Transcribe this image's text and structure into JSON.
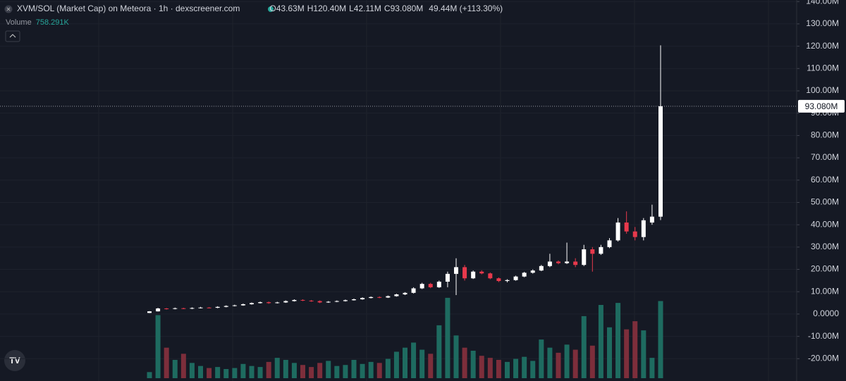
{
  "chart_data": {
    "type": "candlestick",
    "title": "XVM/SOL (Market Cap) on Meteora · 1h · dexscreener.com",
    "ohlc": [
      {
        "key": "O",
        "value": "43.63M"
      },
      {
        "key": "H",
        "value": "120.40M"
      },
      {
        "key": "L",
        "value": "42.11M"
      },
      {
        "key": "C",
        "value": "93.080M"
      }
    ],
    "change": "49.44M (+113.30%)",
    "volume_label": "Volume",
    "volume_value_label": "758.291K",
    "last_price": 93.08,
    "last_price_label": "93.080M",
    "open": [
      0.5,
      1.2,
      2.5,
      2.3,
      2.6,
      2.4,
      2.7,
      2.9,
      2.8,
      3.2,
      3.6,
      3.9,
      4.4,
      4.9,
      5.3,
      4.9,
      5.2,
      5.8,
      6.3,
      6.0,
      5.8,
      5.2,
      5.5,
      5.8,
      6.2,
      6.6,
      7.2,
      7.6,
      7.4,
      8.0,
      8.8,
      9.5,
      11.5,
      13.5,
      12.0,
      14.5,
      18.0,
      21.0,
      16.0,
      19.0,
      18.2,
      16.0,
      14.8,
      15.2,
      16.8,
      18.5,
      19.5,
      21.5,
      23.5,
      22.8,
      23.5,
      22.0,
      29.0,
      27.0,
      30.0,
      33.0,
      41.0,
      37.0,
      34.5,
      41.0,
      43.63
    ],
    "high": [
      1.3,
      2.8,
      2.7,
      2.9,
      2.8,
      3.0,
      3.2,
      3.1,
      3.5,
      3.9,
      4.2,
      4.7,
      5.2,
      5.6,
      5.6,
      5.5,
      6.1,
      6.6,
      6.6,
      6.3,
      6.1,
      5.8,
      6.1,
      6.5,
      6.9,
      7.5,
      7.9,
      7.9,
      8.3,
      9.1,
      9.8,
      12.0,
      14.0,
      14.0,
      15.0,
      19.0,
      25.0,
      22.0,
      19.5,
      19.6,
      18.6,
      16.4,
      15.6,
      17.2,
      18.9,
      20.0,
      22.0,
      27.0,
      24.0,
      32.0,
      25.0,
      31.0,
      30.0,
      31.0,
      34.0,
      43.0,
      46.0,
      39.0,
      43.0,
      49.0,
      120.4
    ],
    "low": [
      0.4,
      1.1,
      2.0,
      2.1,
      2.2,
      2.2,
      2.5,
      2.6,
      2.6,
      3.0,
      3.4,
      3.7,
      4.2,
      4.7,
      4.6,
      4.7,
      5.0,
      5.6,
      5.8,
      5.5,
      4.9,
      5.0,
      5.3,
      5.6,
      6.0,
      6.4,
      7.0,
      7.1,
      7.2,
      7.8,
      8.5,
      9.2,
      11.2,
      11.6,
      11.7,
      12.0,
      8.5,
      15.0,
      15.7,
      17.8,
      15.6,
      14.3,
      14.2,
      14.9,
      16.5,
      18.1,
      19.2,
      21.0,
      22.3,
      22.4,
      21.0,
      21.5,
      19.0,
      26.5,
      29.5,
      32.5,
      36.0,
      33.0,
      33.0,
      40.0,
      42.11
    ],
    "close": [
      1.2,
      2.5,
      2.3,
      2.6,
      2.4,
      2.7,
      2.9,
      2.8,
      3.2,
      3.6,
      3.9,
      4.4,
      4.9,
      5.3,
      4.9,
      5.2,
      5.8,
      6.3,
      6.0,
      5.8,
      5.2,
      5.5,
      5.8,
      6.2,
      6.6,
      7.2,
      7.6,
      7.4,
      8.0,
      8.8,
      9.5,
      11.5,
      13.5,
      12.0,
      14.5,
      18.0,
      21.0,
      16.0,
      19.0,
      18.2,
      16.0,
      14.8,
      15.2,
      16.8,
      18.5,
      19.5,
      21.5,
      23.5,
      22.8,
      23.5,
      22.0,
      29.0,
      27.0,
      30.0,
      33.0,
      41.0,
      37.0,
      34.5,
      42.0,
      43.63,
      93.08
    ],
    "volume": [
      60,
      620,
      300,
      180,
      240,
      150,
      120,
      100,
      110,
      90,
      100,
      140,
      120,
      110,
      160,
      200,
      180,
      150,
      130,
      110,
      150,
      170,
      120,
      130,
      180,
      140,
      160,
      150,
      190,
      260,
      300,
      350,
      280,
      240,
      520,
      790,
      420,
      300,
      270,
      220,
      200,
      180,
      160,
      190,
      210,
      170,
      380,
      300,
      250,
      330,
      280,
      610,
      320,
      720,
      500,
      740,
      480,
      560,
      470,
      200,
      758.291
    ],
    "volume_lim": [
      0,
      900
    ],
    "ylim": [
      -30,
      140.7
    ],
    "yticks": [
      {
        "value": 140,
        "label": "140.00M"
      },
      {
        "value": 130,
        "label": "130.00M"
      },
      {
        "value": 120,
        "label": "120.00M"
      },
      {
        "value": 110,
        "label": "110.00M"
      },
      {
        "value": 100,
        "label": "100.00M"
      },
      {
        "value": 90,
        "label": "90.00M"
      },
      {
        "value": 80,
        "label": "80.00M"
      },
      {
        "value": 70,
        "label": "70.00M"
      },
      {
        "value": 60,
        "label": "60.00M"
      },
      {
        "value": 50,
        "label": "50.00M"
      },
      {
        "value": 40,
        "label": "40.00M"
      },
      {
        "value": 30,
        "label": "30.00M"
      },
      {
        "value": 20,
        "label": "20.00M"
      },
      {
        "value": 10,
        "label": "10.00M"
      },
      {
        "value": 0,
        "label": "0.0000"
      },
      {
        "value": -10,
        "label": "-10.00M"
      },
      {
        "value": -20,
        "label": "-20.00M"
      }
    ],
    "grid": true,
    "up_color": "#ffffff",
    "down_color": "#e8394c",
    "volume_up_color": "#1e6b60",
    "volume_down_color": "#7d2e3b"
  }
}
